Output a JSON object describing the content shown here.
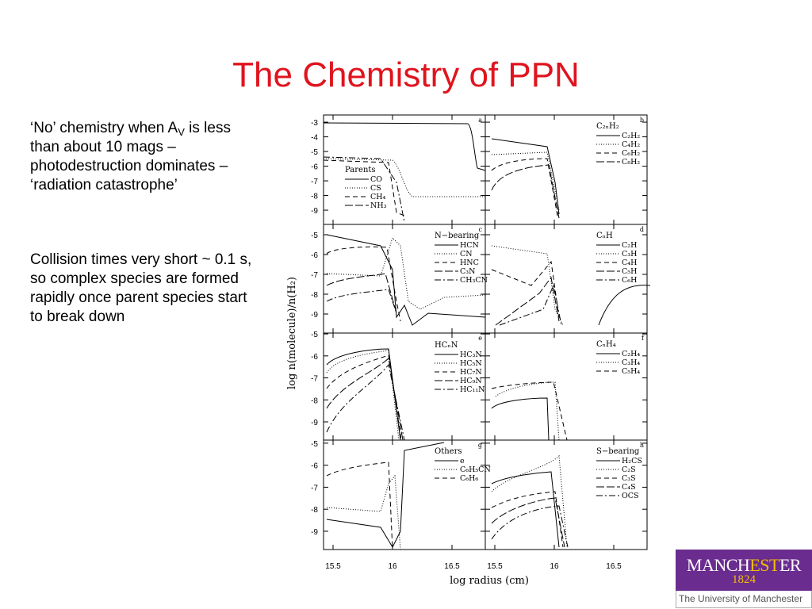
{
  "title": "The Chemistry of PPN",
  "bullets": [
    {
      "parts": [
        "‘No’ chemistry when A",
        "V",
        " is less than about 10 mags – photodestruction dominates – ‘radiation catastrophe’"
      ]
    },
    {
      "parts": [
        "Collision times very short ~ 0.1 s, so complex species are formed rapidly once parent species start to break down"
      ]
    }
  ],
  "figure": {
    "y_label": "log n(molecule)/n(H₂)",
    "x_label": "log radius (cm)",
    "xlim": [
      15.42,
      16.78
    ],
    "xticks": [
      15.5,
      16,
      16.5
    ],
    "rows": [
      {
        "ylim": [
          -9.97,
          -2.51
        ],
        "yticks": [
          -3,
          -4,
          -5,
          -6,
          -7,
          -8,
          -9
        ]
      },
      {
        "ylim": [
          -9.96,
          -4.48
        ],
        "yticks": [
          -5,
          -6,
          -7,
          -8,
          -9
        ]
      },
      {
        "ylim": [
          -9.83,
          -4.96
        ],
        "yticks": [
          -5,
          -6,
          -7,
          -8,
          -9
        ]
      },
      {
        "ylim": [
          -9.83,
          -4.86
        ],
        "yticks": [
          -5,
          -6,
          -7,
          -8,
          -9
        ]
      }
    ],
    "panels": [
      {
        "letter": "a",
        "legend_title": "Parents",
        "legend_loc": "lower left",
        "legend": [
          "CO",
          "CS",
          "CH₄",
          "NH₃"
        ]
      },
      {
        "letter": "b",
        "legend_title": "C₂ₙH₂",
        "legend_loc": "upper right",
        "legend": [
          "C₂H₂",
          "C₄H₂",
          "C₆H₂",
          "C₈H₂"
        ]
      },
      {
        "letter": "c",
        "legend_title": "N−bearing",
        "legend_loc": "upper right",
        "legend": [
          "HCN",
          "CN",
          "HNC",
          "C₃N",
          "CH₃CN"
        ]
      },
      {
        "letter": "d",
        "legend_title": "CₙH",
        "legend_loc": "upper right",
        "legend": [
          "C₂H",
          "C₃H",
          "C₄H",
          "C₅H",
          "C₆H"
        ]
      },
      {
        "letter": "e",
        "legend_title": "HCₙN",
        "legend_loc": "upper left",
        "legend": [
          "HC₃N",
          "HC₅N",
          "HC₇N",
          "HC₉N",
          "HC₁₁N"
        ]
      },
      {
        "letter": "f",
        "legend_title": "CₙH₄",
        "legend_loc": "upper right",
        "legend": [
          "C₂H₄",
          "C₃H₄",
          "C₅H₄"
        ]
      },
      {
        "letter": "g",
        "legend_title": "Others",
        "legend_loc": "upper right",
        "legend": [
          "e",
          "C₆H₅CN",
          "C₆H₆"
        ]
      },
      {
        "letter": "h",
        "legend_title": "S−bearing",
        "legend_loc": "upper right",
        "legend": [
          "H₂CS",
          "C₂S",
          "C₃S",
          "C₄S",
          "OCS"
        ]
      }
    ]
  },
  "logo": {
    "name": [
      "MANCH",
      "EST",
      "ER"
    ],
    "year": "1824",
    "subtitle": "The University of Manchester"
  }
}
